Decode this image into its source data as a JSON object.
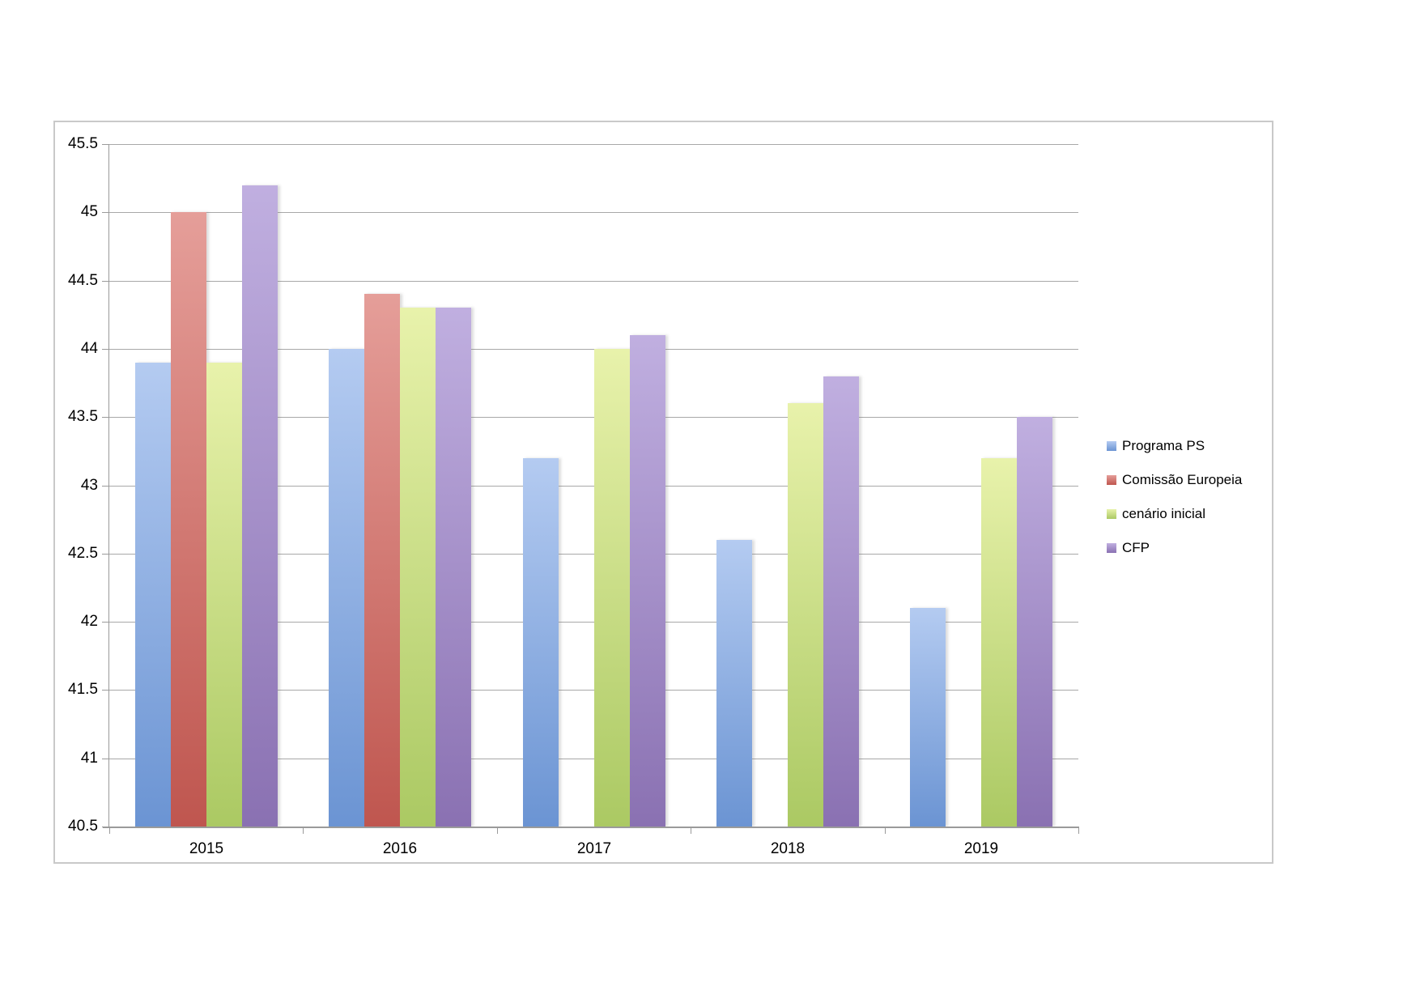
{
  "chart_data": {
    "type": "bar",
    "title": "",
    "xlabel": "",
    "ylabel": "",
    "categories": [
      "2015",
      "2016",
      "2017",
      "2018",
      "2019"
    ],
    "series": [
      {
        "name": "Programa PS",
        "color_top": "#b4cbf1",
        "color_bottom": "#6b94d3",
        "values": [
          43.9,
          44.0,
          43.2,
          42.6,
          42.1
        ]
      },
      {
        "name": "Comissão Europeia",
        "color_top": "#e59e99",
        "color_bottom": "#bf564f",
        "values": [
          45.0,
          44.4,
          null,
          null,
          null
        ]
      },
      {
        "name": "cenário inicial",
        "color_top": "#e8f2ab",
        "color_bottom": "#abc963",
        "values": [
          43.9,
          44.3,
          44.0,
          43.6,
          43.2
        ]
      },
      {
        "name": "CFP",
        "color_top": "#c0afe0",
        "color_bottom": "#8a71b2",
        "values": [
          45.2,
          44.3,
          44.1,
          43.8,
          43.5
        ]
      }
    ],
    "ylim": [
      40.5,
      45.5
    ],
    "ytick_step": 0.5,
    "grid": true,
    "legend_position": "right",
    "axis_color": "#9a9a9a",
    "gridline_color": "#a8a8a8"
  }
}
